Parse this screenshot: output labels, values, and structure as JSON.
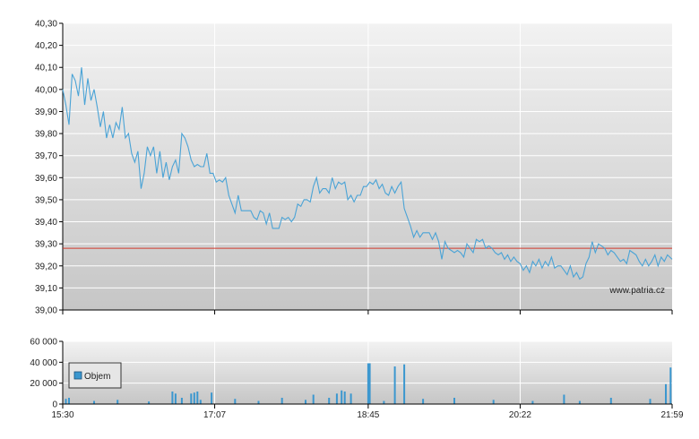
{
  "watermark": "www.patria.cz",
  "colors": {
    "price_line": "#4aa3d6",
    "reference_line": "#d23a2e",
    "volume_bar": "#3b97cf",
    "grid": "#ffffff",
    "axis": "#000000"
  },
  "chart_data": [
    {
      "type": "line",
      "name": "price",
      "x_ticks": [
        "15:30",
        "17:07",
        "18:45",
        "20:22",
        "21:59"
      ],
      "y_ticks": [
        "39,00",
        "39,10",
        "39,20",
        "39,30",
        "39,40",
        "39,50",
        "39,60",
        "39,70",
        "39,80",
        "39,90",
        "40,00",
        "40,10",
        "40,20",
        "40,30"
      ],
      "ylim": [
        39.0,
        40.3
      ],
      "xlim": [
        "15:30",
        "21:59"
      ],
      "grid": true,
      "reference_line": 39.28,
      "series": [
        {
          "points": [
            [
              "15:30",
              40.0
            ],
            [
              "15:32",
              39.93
            ],
            [
              "15:34",
              39.84
            ],
            [
              "15:36",
              40.07
            ],
            [
              "15:38",
              40.04
            ],
            [
              "15:40",
              39.97
            ],
            [
              "15:42",
              40.1
            ],
            [
              "15:44",
              39.93
            ],
            [
              "15:46",
              40.05
            ],
            [
              "15:48",
              39.95
            ],
            [
              "15:50",
              40.0
            ],
            [
              "15:52",
              39.92
            ],
            [
              "15:54",
              39.83
            ],
            [
              "15:56",
              39.9
            ],
            [
              "15:58",
              39.78
            ],
            [
              "16:00",
              39.84
            ],
            [
              "16:02",
              39.78
            ],
            [
              "16:04",
              39.85
            ],
            [
              "16:06",
              39.82
            ],
            [
              "16:08",
              39.92
            ],
            [
              "16:10",
              39.78
            ],
            [
              "16:12",
              39.8
            ],
            [
              "16:14",
              39.71
            ],
            [
              "16:16",
              39.67
            ],
            [
              "16:18",
              39.72
            ],
            [
              "16:20",
              39.55
            ],
            [
              "16:22",
              39.62
            ],
            [
              "16:24",
              39.74
            ],
            [
              "16:26",
              39.7
            ],
            [
              "16:28",
              39.74
            ],
            [
              "16:30",
              39.62
            ],
            [
              "16:32",
              39.72
            ],
            [
              "16:34",
              39.6
            ],
            [
              "16:36",
              39.67
            ],
            [
              "16:38",
              39.59
            ],
            [
              "16:40",
              39.65
            ],
            [
              "16:42",
              39.68
            ],
            [
              "16:44",
              39.62
            ],
            [
              "16:46",
              39.8
            ],
            [
              "16:48",
              39.78
            ],
            [
              "16:50",
              39.74
            ],
            [
              "16:52",
              39.68
            ],
            [
              "16:54",
              39.65
            ],
            [
              "16:56",
              39.66
            ],
            [
              "16:58",
              39.65
            ],
            [
              "17:00",
              39.65
            ],
            [
              "17:02",
              39.71
            ],
            [
              "17:04",
              39.62
            ],
            [
              "17:06",
              39.62
            ],
            [
              "17:08",
              39.58
            ],
            [
              "17:10",
              39.59
            ],
            [
              "17:12",
              39.58
            ],
            [
              "17:14",
              39.6
            ],
            [
              "17:16",
              39.52
            ],
            [
              "17:18",
              39.48
            ],
            [
              "17:20",
              39.44
            ],
            [
              "17:22",
              39.52
            ],
            [
              "17:24",
              39.45
            ],
            [
              "17:26",
              39.45
            ],
            [
              "17:28",
              39.45
            ],
            [
              "17:30",
              39.45
            ],
            [
              "17:32",
              39.42
            ],
            [
              "17:34",
              39.41
            ],
            [
              "17:36",
              39.45
            ],
            [
              "17:38",
              39.44
            ],
            [
              "17:40",
              39.39
            ],
            [
              "17:42",
              39.44
            ],
            [
              "17:44",
              39.37
            ],
            [
              "17:46",
              39.37
            ],
            [
              "17:48",
              39.37
            ],
            [
              "17:50",
              39.42
            ],
            [
              "17:52",
              39.41
            ],
            [
              "17:54",
              39.42
            ],
            [
              "17:56",
              39.4
            ],
            [
              "17:58",
              39.42
            ],
            [
              "18:00",
              39.48
            ],
            [
              "18:02",
              39.47
            ],
            [
              "18:04",
              39.5
            ],
            [
              "18:06",
              39.5
            ],
            [
              "18:08",
              39.49
            ],
            [
              "18:10",
              39.56
            ],
            [
              "18:12",
              39.6
            ],
            [
              "18:14",
              39.53
            ],
            [
              "18:16",
              39.55
            ],
            [
              "18:18",
              39.55
            ],
            [
              "18:20",
              39.53
            ],
            [
              "18:22",
              39.6
            ],
            [
              "18:24",
              39.55
            ],
            [
              "18:26",
              39.58
            ],
            [
              "18:28",
              39.57
            ],
            [
              "18:30",
              39.58
            ],
            [
              "18:32",
              39.5
            ],
            [
              "18:34",
              39.52
            ],
            [
              "18:36",
              39.49
            ],
            [
              "18:38",
              39.52
            ],
            [
              "18:40",
              39.52
            ],
            [
              "18:42",
              39.56
            ],
            [
              "18:44",
              39.56
            ],
            [
              "18:46",
              39.58
            ],
            [
              "18:48",
              39.57
            ],
            [
              "18:50",
              39.59
            ],
            [
              "18:52",
              39.55
            ],
            [
              "18:54",
              39.57
            ],
            [
              "18:56",
              39.53
            ],
            [
              "18:58",
              39.52
            ],
            [
              "19:00",
              39.56
            ],
            [
              "19:02",
              39.53
            ],
            [
              "19:04",
              39.56
            ],
            [
              "19:06",
              39.58
            ],
            [
              "19:08",
              39.46
            ],
            [
              "19:10",
              39.42
            ],
            [
              "19:12",
              39.38
            ],
            [
              "19:14",
              39.33
            ],
            [
              "19:16",
              39.36
            ],
            [
              "19:18",
              39.33
            ],
            [
              "19:20",
              39.35
            ],
            [
              "19:22",
              39.35
            ],
            [
              "19:24",
              39.35
            ],
            [
              "19:26",
              39.32
            ],
            [
              "19:28",
              39.35
            ],
            [
              "19:30",
              39.31
            ],
            [
              "19:32",
              39.23
            ],
            [
              "19:34",
              39.31
            ],
            [
              "19:36",
              39.28
            ],
            [
              "19:38",
              39.27
            ],
            [
              "19:40",
              39.26
            ],
            [
              "19:42",
              39.27
            ],
            [
              "19:44",
              39.26
            ],
            [
              "19:46",
              39.24
            ],
            [
              "19:48",
              39.3
            ],
            [
              "19:50",
              39.28
            ],
            [
              "19:52",
              39.26
            ],
            [
              "19:54",
              39.32
            ],
            [
              "19:56",
              39.31
            ],
            [
              "19:58",
              39.32
            ],
            [
              "20:00",
              39.28
            ],
            [
              "20:02",
              39.29
            ],
            [
              "20:04",
              39.28
            ],
            [
              "20:06",
              39.26
            ],
            [
              "20:08",
              39.25
            ],
            [
              "20:10",
              39.26
            ],
            [
              "20:12",
              39.23
            ],
            [
              "20:14",
              39.25
            ],
            [
              "20:16",
              39.22
            ],
            [
              "20:18",
              39.24
            ],
            [
              "20:20",
              39.22
            ],
            [
              "20:22",
              39.21
            ],
            [
              "20:24",
              39.18
            ],
            [
              "20:26",
              39.2
            ],
            [
              "20:28",
              39.17
            ],
            [
              "20:30",
              39.22
            ],
            [
              "20:32",
              39.2
            ],
            [
              "20:34",
              39.23
            ],
            [
              "20:36",
              39.19
            ],
            [
              "20:38",
              39.22
            ],
            [
              "20:40",
              39.2
            ],
            [
              "20:42",
              39.24
            ],
            [
              "20:44",
              39.19
            ],
            [
              "20:46",
              39.2
            ],
            [
              "20:48",
              39.2
            ],
            [
              "20:50",
              39.18
            ],
            [
              "20:52",
              39.16
            ],
            [
              "20:54",
              39.2
            ],
            [
              "20:56",
              39.15
            ],
            [
              "20:58",
              39.17
            ],
            [
              "21:00",
              39.14
            ],
            [
              "21:02",
              39.15
            ],
            [
              "21:04",
              39.21
            ],
            [
              "21:06",
              39.24
            ],
            [
              "21:08",
              39.31
            ],
            [
              "21:10",
              39.26
            ],
            [
              "21:12",
              39.3
            ],
            [
              "21:14",
              39.29
            ],
            [
              "21:16",
              39.28
            ],
            [
              "21:18",
              39.25
            ],
            [
              "21:20",
              39.27
            ],
            [
              "21:22",
              39.26
            ],
            [
              "21:24",
              39.24
            ],
            [
              "21:26",
              39.22
            ],
            [
              "21:28",
              39.23
            ],
            [
              "21:30",
              39.21
            ],
            [
              "21:32",
              39.27
            ],
            [
              "21:34",
              39.26
            ],
            [
              "21:36",
              39.25
            ],
            [
              "21:38",
              39.22
            ],
            [
              "21:40",
              39.2
            ],
            [
              "21:42",
              39.23
            ],
            [
              "21:44",
              39.2
            ],
            [
              "21:46",
              39.22
            ],
            [
              "21:48",
              39.25
            ],
            [
              "21:50",
              39.2
            ],
            [
              "21:52",
              39.24
            ],
            [
              "21:54",
              39.22
            ],
            [
              "21:56",
              39.25
            ],
            [
              "21:59",
              39.23
            ]
          ]
        }
      ]
    },
    {
      "type": "bar",
      "name": "volume",
      "x_ticks": [
        "15:30",
        "17:07",
        "18:45",
        "20:22",
        "21:59"
      ],
      "y_ticks": [
        "0",
        "20 000",
        "40 000",
        "60 000"
      ],
      "ylim": [
        0,
        60000
      ],
      "grid": true,
      "legend": {
        "entries": [
          "Objem"
        ],
        "position": "left"
      },
      "series": [
        {
          "name": "Objem",
          "points": [
            [
              "15:32",
              5000
            ],
            [
              "15:34",
              6000
            ],
            [
              "15:50",
              3000
            ],
            [
              "16:05",
              4000
            ],
            [
              "16:25",
              2500
            ],
            [
              "16:40",
              12000
            ],
            [
              "16:42",
              10000
            ],
            [
              "16:46",
              6000
            ],
            [
              "16:52",
              10000
            ],
            [
              "16:54",
              11000
            ],
            [
              "16:56",
              12000
            ],
            [
              "16:58",
              4000
            ],
            [
              "17:05",
              11000
            ],
            [
              "17:20",
              5000
            ],
            [
              "17:35",
              3000
            ],
            [
              "17:50",
              6000
            ],
            [
              "18:05",
              4000
            ],
            [
              "18:10",
              9000
            ],
            [
              "18:20",
              6000
            ],
            [
              "18:25",
              10000
            ],
            [
              "18:28",
              13000
            ],
            [
              "18:30",
              12000
            ],
            [
              "18:34",
              10000
            ],
            [
              "18:45",
              39000
            ],
            [
              "18:46",
              39000
            ],
            [
              "18:55",
              3000
            ],
            [
              "19:02",
              36000
            ],
            [
              "19:08",
              38000
            ],
            [
              "19:20",
              5000
            ],
            [
              "19:40",
              6000
            ],
            [
              "20:05",
              4000
            ],
            [
              "20:30",
              3000
            ],
            [
              "20:50",
              9000
            ],
            [
              "21:00",
              3000
            ],
            [
              "21:20",
              6000
            ],
            [
              "21:45",
              5000
            ],
            [
              "21:55",
              19000
            ],
            [
              "21:58",
              35000
            ]
          ]
        }
      ]
    }
  ]
}
